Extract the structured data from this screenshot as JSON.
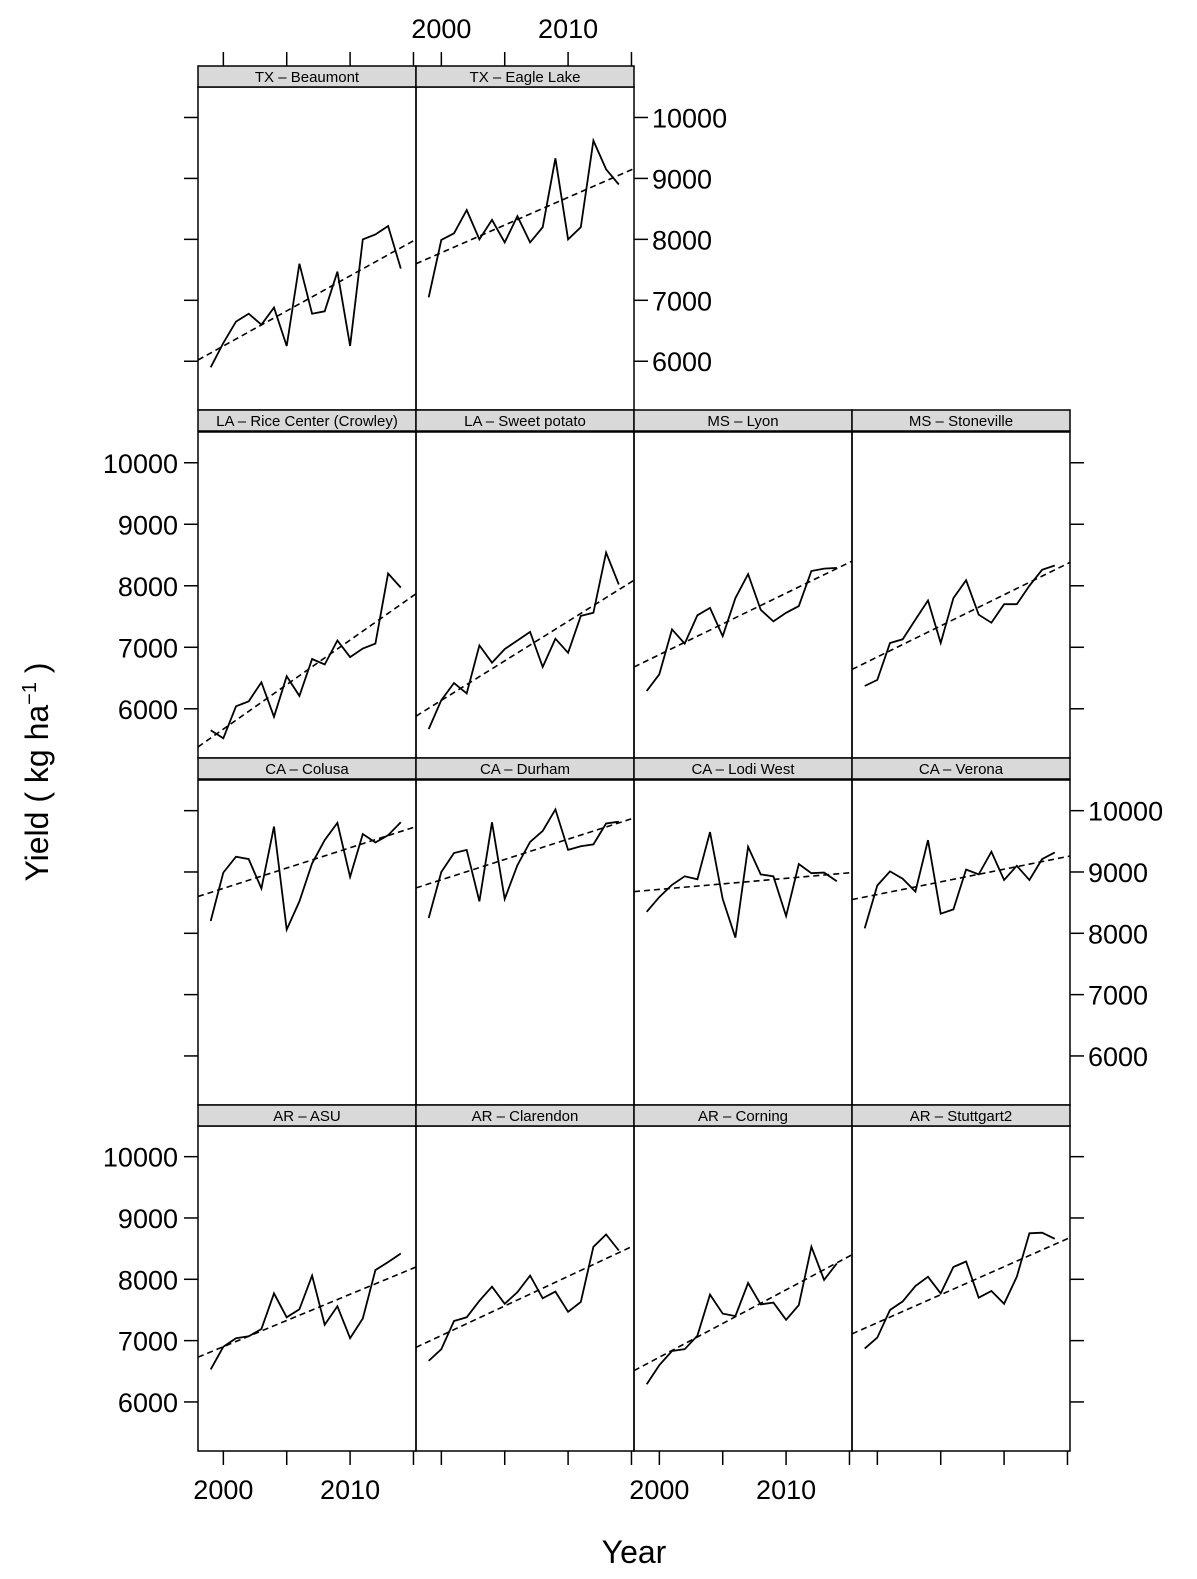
{
  "chart_data": {
    "type": "line",
    "xlabel": "Year",
    "ylabel": "Yield ( kg ha",
    "ylabel_superscript": "−1",
    "ylabel_suffix": " )",
    "xlim": [
      1998,
      2015.2
    ],
    "ylim": [
      5200,
      10500
    ],
    "x_ticks": [
      2000,
      2005,
      2010,
      2015
    ],
    "x_tick_labels": [
      "2000",
      "2010"
    ],
    "y_ticks": [
      6000,
      7000,
      8000,
      9000,
      10000
    ],
    "y_tick_labels": [
      "6000",
      "7000",
      "8000",
      "9000",
      "10000"
    ],
    "years": [
      1999,
      2000,
      2001,
      2002,
      2003,
      2004,
      2005,
      2006,
      2007,
      2008,
      2009,
      2010,
      2011,
      2012,
      2013,
      2014
    ],
    "grid": false,
    "panels": [
      {
        "name": "TX – Beaumont",
        "row": 0,
        "col": 0,
        "values": [
          5900,
          6300,
          6650,
          6780,
          6600,
          6880,
          6250,
          7600,
          6780,
          6820,
          7470,
          6250,
          8000,
          8080,
          8220,
          7520
        ],
        "trend": [
          6020,
          8000
        ]
      },
      {
        "name": "TX – Eagle Lake",
        "row": 0,
        "col": 1,
        "values": [
          7050,
          7990,
          8100,
          8480,
          8000,
          8320,
          7950,
          8380,
          7950,
          8200,
          9330,
          8000,
          8200,
          9620,
          9150,
          8900
        ],
        "trend": [
          7600,
          9160
        ]
      },
      {
        "name": "LA – Rice Center (Crowley)",
        "row": 1,
        "col": 0,
        "values": [
          5650,
          5520,
          6040,
          6120,
          6430,
          5870,
          6530,
          6210,
          6810,
          6720,
          7110,
          6840,
          6980,
          7060,
          8200,
          7970
        ],
        "trend": [
          5380,
          7870
        ]
      },
      {
        "name": "LA – Sweet potato",
        "row": 1,
        "col": 1,
        "values": [
          5670,
          6140,
          6420,
          6250,
          7030,
          6750,
          6970,
          7110,
          7250,
          6680,
          7140,
          6910,
          7510,
          7560,
          8540,
          8020
        ],
        "trend": [
          5880,
          8090
        ]
      },
      {
        "name": "MS – Lyon",
        "row": 1,
        "col": 2,
        "values": [
          6290,
          6560,
          7290,
          7060,
          7520,
          7640,
          7180,
          7800,
          8190,
          7610,
          7420,
          7560,
          7670,
          8240,
          8280,
          8290
        ],
        "trend": [
          6680,
          8400
        ]
      },
      {
        "name": "MS – Stoneville",
        "row": 1,
        "col": 3,
        "values": [
          6370,
          6470,
          7070,
          7130,
          7450,
          7760,
          7070,
          7800,
          8090,
          7530,
          7400,
          7700,
          7700,
          8000,
          8260,
          8330
        ],
        "trend": [
          6640,
          8380
        ]
      },
      {
        "name": "CA – Colusa",
        "row": 2,
        "col": 0,
        "values": [
          8200,
          8990,
          9250,
          9210,
          8730,
          9740,
          8060,
          8520,
          9140,
          9520,
          9800,
          8920,
          9620,
          9480,
          9600,
          9810
        ],
        "trend": [
          8600,
          9740
        ]
      },
      {
        "name": "CA – Durham",
        "row": 2,
        "col": 1,
        "values": [
          8250,
          9000,
          9310,
          9360,
          8520,
          9810,
          8560,
          9110,
          9490,
          9670,
          10020,
          9360,
          9420,
          9450,
          9790,
          9820
        ],
        "trend": [
          8740,
          9880
        ]
      },
      {
        "name": "CA – Lodi West",
        "row": 2,
        "col": 2,
        "values": [
          8350,
          8590,
          8790,
          8930,
          8880,
          9650,
          8560,
          7930,
          9410,
          8960,
          8930,
          8280,
          9130,
          8980,
          8990,
          8850
        ],
        "trend": [
          8680,
          8990
        ]
      },
      {
        "name": "CA – Verona",
        "row": 2,
        "col": 3,
        "values": [
          8080,
          8780,
          9010,
          8890,
          8680,
          9520,
          8320,
          8390,
          9040,
          8960,
          9330,
          8870,
          9100,
          8870,
          9210,
          9320
        ],
        "trend": [
          8550,
          9260
        ]
      },
      {
        "name": "AR – ASU",
        "row": 3,
        "col": 0,
        "values": [
          6530,
          6900,
          7040,
          7070,
          7190,
          7770,
          7380,
          7510,
          8060,
          7260,
          7560,
          7040,
          7360,
          8150,
          8280,
          8420
        ],
        "trend": [
          6730,
          8200
        ]
      },
      {
        "name": "AR – Clarendon",
        "row": 3,
        "col": 1,
        "values": [
          6670,
          6860,
          7320,
          7380,
          7650,
          7880,
          7600,
          7790,
          8060,
          7690,
          7800,
          7470,
          7630,
          8530,
          8730,
          8470
        ],
        "trend": [
          6890,
          8550
        ]
      },
      {
        "name": "AR – Corning",
        "row": 3,
        "col": 2,
        "values": [
          6290,
          6600,
          6830,
          6860,
          7080,
          7750,
          7440,
          7400,
          7940,
          7590,
          7620,
          7340,
          7580,
          8530,
          7990,
          8260
        ],
        "trend": [
          6510,
          8400
        ]
      },
      {
        "name": "AR – Stuttgart2",
        "row": 3,
        "col": 3,
        "values": [
          6870,
          7050,
          7500,
          7640,
          7890,
          8040,
          7770,
          8200,
          8290,
          7700,
          7810,
          7600,
          8040,
          8750,
          8760,
          8660
        ],
        "trend": [
          7110,
          8680
        ]
      }
    ]
  }
}
